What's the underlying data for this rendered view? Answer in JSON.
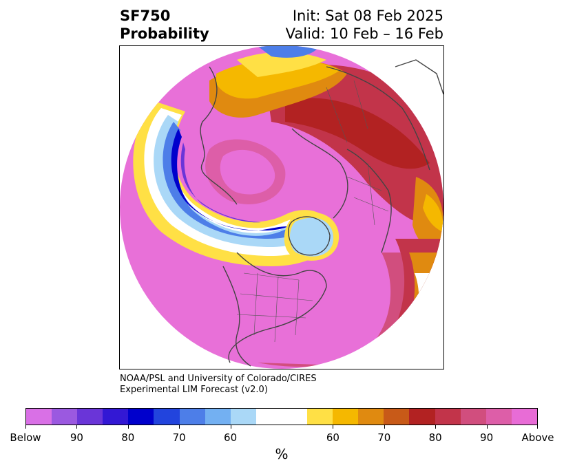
{
  "title": {
    "variable": "SF750",
    "kind": "Probability",
    "init": "Init: Sat 08 Feb 2025",
    "valid": "Valid: 10 Feb – 16 Feb"
  },
  "credit": {
    "line1": "NOAA/PSL and University of Colorado/CIRES",
    "line2": "Experimental LIM Forecast (v2.0)"
  },
  "colorbar": {
    "unit": "%",
    "colors": [
      "#d970e6",
      "#9b59e0",
      "#6a35d8",
      "#3318d4",
      "#0000cc",
      "#2244dd",
      "#4d7ee8",
      "#73b0f2",
      "#aad8f7",
      "#ffffff",
      "#ffffff",
      "#ffe045",
      "#f5b800",
      "#e08a10",
      "#c85a18",
      "#b22222",
      "#c2344a",
      "#d14e7e",
      "#dd5ea8",
      "#e86cd6"
    ],
    "ticks": [
      {
        "label": "Below",
        "index": 0
      },
      {
        "label": "90",
        "index": 2
      },
      {
        "label": "80",
        "index": 4
      },
      {
        "label": "70",
        "index": 6
      },
      {
        "label": "60",
        "index": 8
      },
      {
        "label": "60",
        "index": 12
      },
      {
        "label": "70",
        "index": 14
      },
      {
        "label": "80",
        "index": 16
      },
      {
        "label": "90",
        "index": 18
      },
      {
        "label": "Above",
        "index": 20
      }
    ]
  }
}
